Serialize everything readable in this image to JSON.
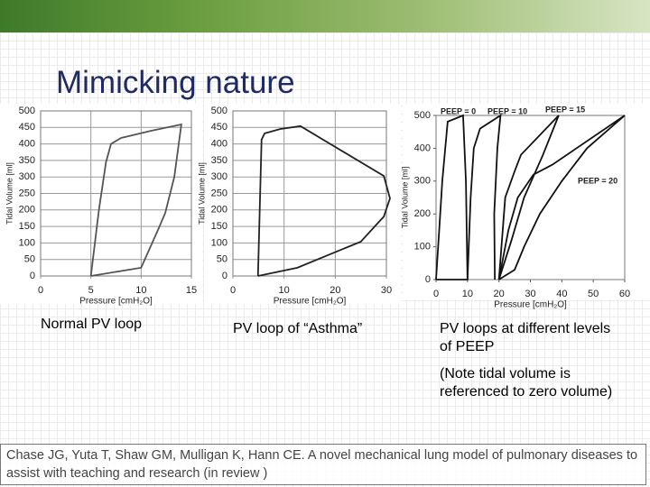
{
  "title": "Mimicking nature",
  "captions": [
    "Normal PV loop",
    "PV loop of “Asthma”",
    "PV loops at different levels of PEEP"
  ],
  "note": "(Note tidal volume is referenced to zero volume)",
  "citation": "Chase JG, Yuta T, Shaw GM, Mulligan K, Hann CE. A novel mechanical lung model of pulmonary diseases to assist with teaching and research (in review )",
  "chart_data": [
    {
      "type": "line",
      "x_label": "Pressure [cmH₂O]",
      "y_label": "Tidal Volume [ml]",
      "xlim": [
        0,
        15
      ],
      "xticks": [
        0,
        5,
        10,
        15
      ],
      "ylim": [
        0,
        500
      ],
      "yticks": [
        0,
        50,
        100,
        150,
        200,
        250,
        300,
        350,
        400,
        450,
        500
      ],
      "grid": true,
      "series": [
        {
          "color": "#555555",
          "x": [
            5,
            5.8,
            6.5,
            7,
            8,
            11,
            14,
            13.3,
            12.4,
            11.8,
            10,
            5
          ],
          "values": [
            0,
            200,
            344,
            400,
            418,
            440,
            459,
            300,
            191,
            148,
            25,
            0
          ]
        }
      ]
    },
    {
      "type": "line",
      "x_label": "Pressure [cmH₂O]",
      "y_label": "Tidal Volume [ml]",
      "xlim": [
        0,
        30
      ],
      "xticks": [
        0,
        10,
        20,
        30
      ],
      "ylim": [
        0,
        500
      ],
      "yticks": [
        0,
        50,
        100,
        150,
        200,
        250,
        300,
        350,
        400,
        450,
        500
      ],
      "grid": true,
      "series": [
        {
          "color": "#222222",
          "x": [
            4.9,
            5.6,
            6.2,
            9.2,
            13.2,
            29.5,
            30.7,
            29.5,
            25,
            12.6,
            4.9
          ],
          "values": [
            0,
            413,
            432,
            445,
            454,
            303,
            235,
            180,
            104,
            25,
            0
          ]
        }
      ]
    },
    {
      "type": "line",
      "x_label": "Pressure [cmH₂O]",
      "y_label": "Tidal Volume [ml]",
      "xlim": [
        0,
        60
      ],
      "xticks": [
        0,
        10,
        20,
        30,
        40,
        50,
        60
      ],
      "ylim": [
        0,
        500
      ],
      "yticks": [
        0,
        100,
        200,
        300,
        400,
        500
      ],
      "grid": false,
      "series": [
        {
          "name": "PEEP = 0",
          "color": "#111111",
          "x": [
            0,
            1,
            2,
            3.7,
            8.6,
            9.5,
            10,
            0
          ],
          "values": [
            0,
            150,
            302,
            481,
            500,
            300,
            0,
            0
          ]
        },
        {
          "name": "PEEP = 10",
          "color": "#111111",
          "x": [
            10,
            11,
            12,
            14,
            20.5,
            19.5,
            18.5,
            18.7
          ],
          "values": [
            0,
            250,
            400,
            460,
            500,
            400,
            200,
            0
          ]
        },
        {
          "name": "PEEP = 15",
          "color": "#111111",
          "x": [
            20,
            22,
            25,
            27,
            39,
            34,
            28,
            24,
            20
          ],
          "values": [
            0,
            250,
            330,
            380,
            500,
            380,
            250,
            120,
            0
          ]
        },
        {
          "name": "PEEP = 20",
          "color": "#111111",
          "x": [
            20,
            23,
            26,
            31,
            37,
            60,
            48,
            40,
            33,
            28,
            25,
            20
          ],
          "values": [
            0,
            150,
            250,
            320,
            350,
            500,
            400,
            300,
            200,
            100,
            30,
            0
          ]
        }
      ]
    }
  ]
}
